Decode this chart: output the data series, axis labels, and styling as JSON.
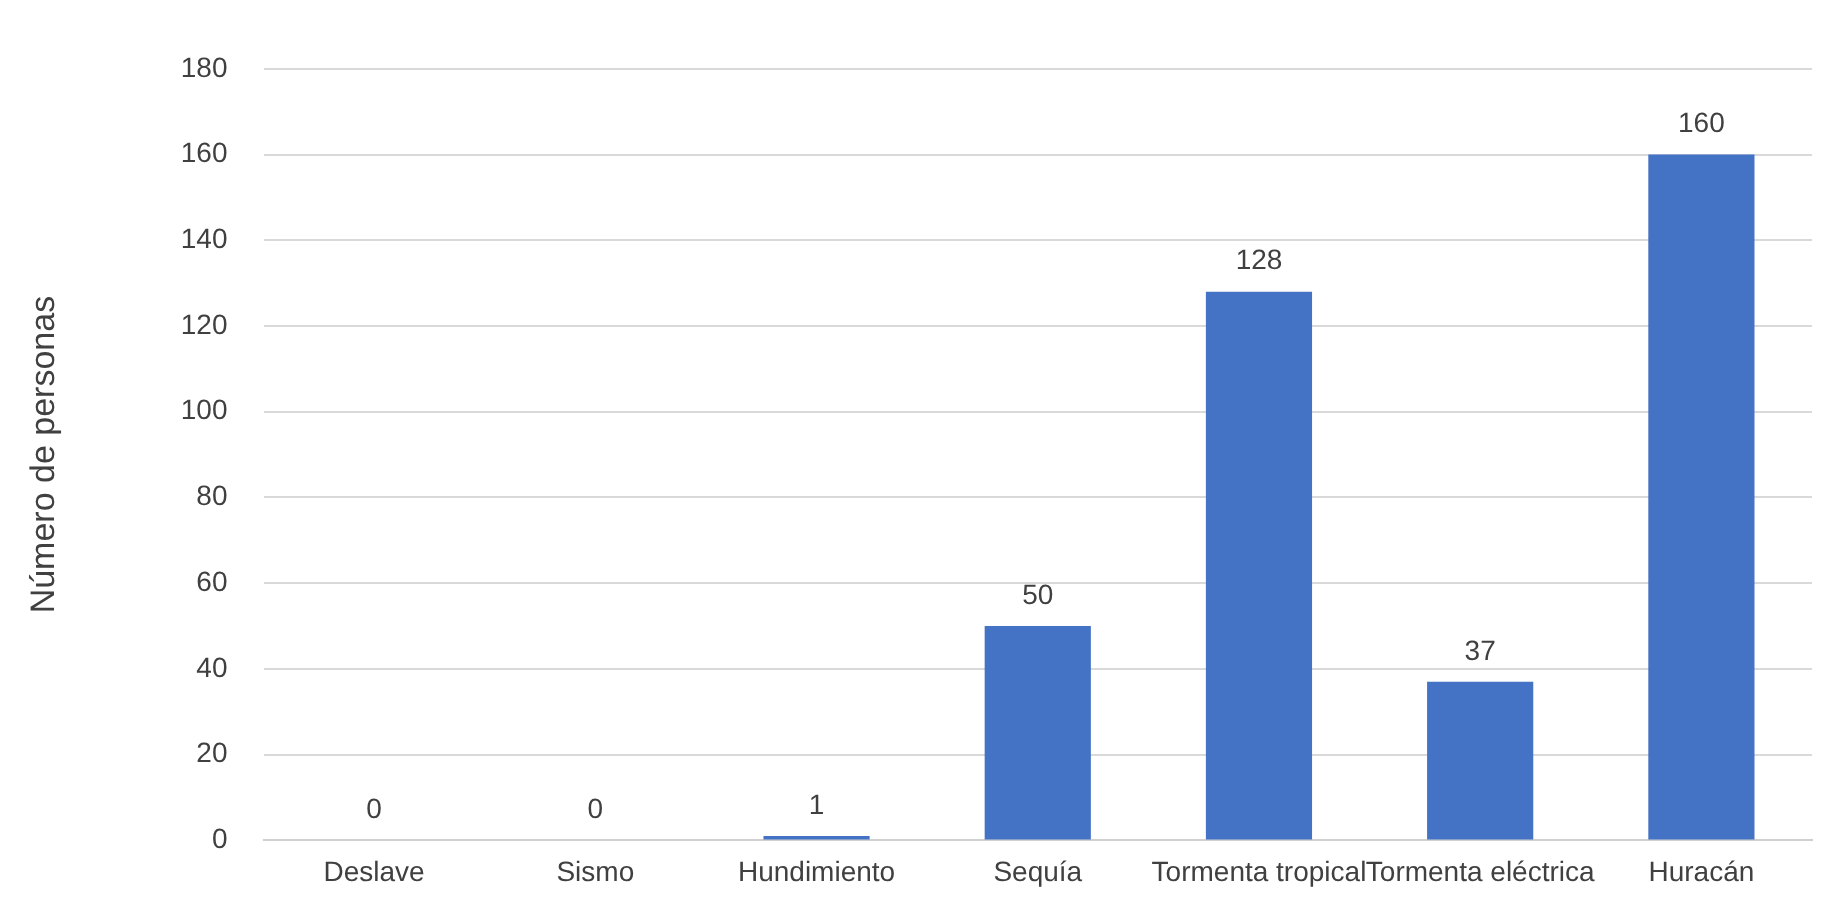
{
  "chart_data": {
    "type": "bar",
    "ylabel": "Número de personas",
    "categories": [
      "Deslave",
      "Sismo",
      "Hundimiento",
      "Sequía",
      "Tormenta tropical",
      "Tormenta eléctrica",
      "Huracán"
    ],
    "values": [
      0,
      0,
      1,
      50,
      128,
      37,
      160
    ],
    "color": "#4472c4",
    "ylim": [
      0,
      180
    ],
    "yticks": [
      0,
      20,
      40,
      60,
      80,
      100,
      120,
      140,
      160,
      180
    ],
    "grid": "y",
    "data_labels": true
  }
}
